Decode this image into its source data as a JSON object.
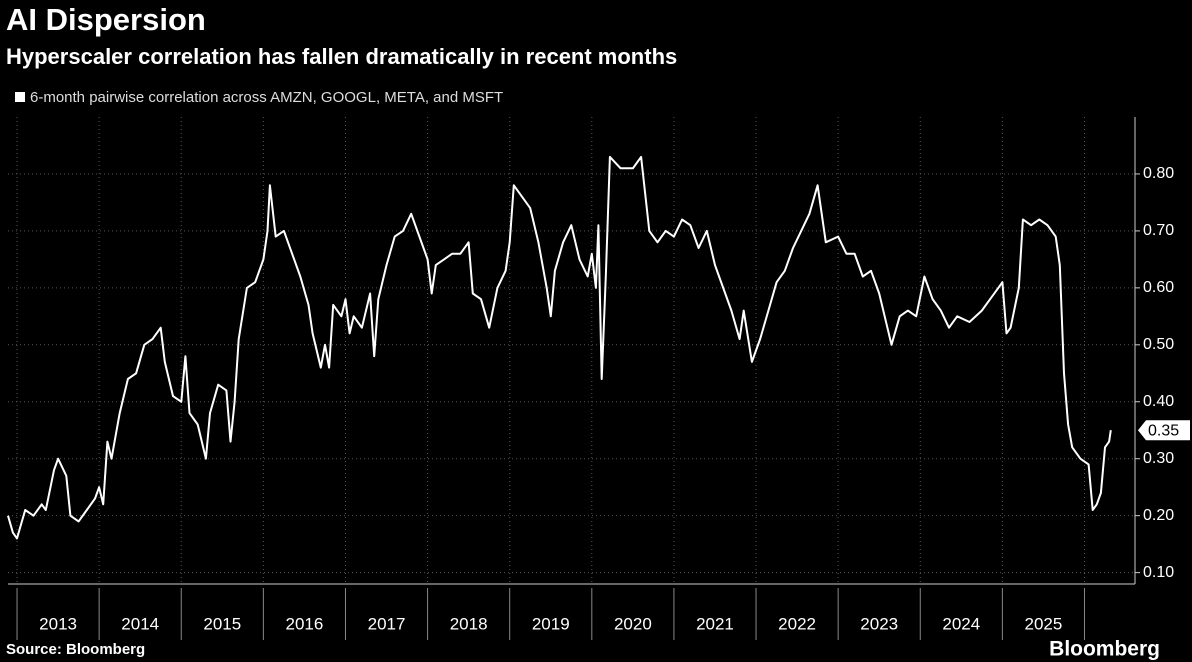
{
  "chart_data": {
    "type": "line",
    "title": "AI Dispersion",
    "subtitle": "Hyperscaler correlation has fallen dramatically in recent months",
    "source": "Source: Bloomberg",
    "brand": "Bloomberg",
    "x": [
      2012.89,
      2012.95,
      2013.0,
      2013.1,
      2013.2,
      2013.3,
      2013.35,
      2013.45,
      2013.5,
      2013.6,
      2013.65,
      2013.75,
      2013.85,
      2013.95,
      2014.0,
      2014.05,
      2014.1,
      2014.15,
      2014.25,
      2014.35,
      2014.45,
      2014.55,
      2014.65,
      2014.75,
      2014.8,
      2014.9,
      2015.0,
      2015.05,
      2015.1,
      2015.2,
      2015.3,
      2015.35,
      2015.45,
      2015.55,
      2015.6,
      2015.65,
      2015.7,
      2015.8,
      2015.9,
      2016.0,
      2016.05,
      2016.08,
      2016.15,
      2016.25,
      2016.35,
      2016.45,
      2016.55,
      2016.6,
      2016.7,
      2016.75,
      2016.8,
      2016.85,
      2016.95,
      2017.0,
      2017.05,
      2017.1,
      2017.2,
      2017.3,
      2017.35,
      2017.4,
      2017.5,
      2017.6,
      2017.7,
      2017.8,
      2017.9,
      2018.0,
      2018.05,
      2018.1,
      2018.2,
      2018.3,
      2018.4,
      2018.5,
      2018.55,
      2018.65,
      2018.75,
      2018.85,
      2018.95,
      2019.0,
      2019.05,
      2019.15,
      2019.25,
      2019.35,
      2019.45,
      2019.5,
      2019.55,
      2019.65,
      2019.75,
      2019.85,
      2019.95,
      2020.0,
      2020.05,
      2020.08,
      2020.12,
      2020.17,
      2020.22,
      2020.35,
      2020.5,
      2020.6,
      2020.7,
      2020.8,
      2020.9,
      2021.0,
      2021.1,
      2021.2,
      2021.3,
      2021.4,
      2021.5,
      2021.6,
      2021.7,
      2021.8,
      2021.85,
      2021.95,
      2022.05,
      2022.15,
      2022.25,
      2022.35,
      2022.45,
      2022.55,
      2022.65,
      2022.75,
      2022.8,
      2022.85,
      2023.0,
      2023.1,
      2023.2,
      2023.3,
      2023.4,
      2023.5,
      2023.6,
      2023.65,
      2023.75,
      2023.85,
      2023.95,
      2024.05,
      2024.15,
      2024.25,
      2024.35,
      2024.45,
      2024.6,
      2024.75,
      2024.85,
      2024.95,
      2025.0,
      2025.05,
      2025.1,
      2025.2,
      2025.25,
      2025.35,
      2025.45,
      2025.55,
      2025.65,
      2025.7,
      2025.75,
      2025.8,
      2025.85,
      2025.95,
      2026.05,
      2026.1,
      2026.15,
      2026.2,
      2026.25,
      2026.3,
      2026.32
    ],
    "series": [
      {
        "name": "6-month pairwise correlation across AMZN, GOOGL, META, and MSFT",
        "color": "#ffffff",
        "values": [
          0.2,
          0.17,
          0.16,
          0.21,
          0.2,
          0.22,
          0.21,
          0.28,
          0.3,
          0.27,
          0.2,
          0.19,
          0.21,
          0.23,
          0.25,
          0.22,
          0.33,
          0.3,
          0.38,
          0.44,
          0.45,
          0.5,
          0.51,
          0.53,
          0.47,
          0.41,
          0.4,
          0.48,
          0.38,
          0.36,
          0.3,
          0.38,
          0.43,
          0.42,
          0.33,
          0.4,
          0.51,
          0.6,
          0.61,
          0.65,
          0.7,
          0.78,
          0.69,
          0.7,
          0.66,
          0.62,
          0.57,
          0.52,
          0.46,
          0.5,
          0.46,
          0.57,
          0.55,
          0.58,
          0.52,
          0.55,
          0.53,
          0.59,
          0.48,
          0.58,
          0.64,
          0.69,
          0.7,
          0.73,
          0.69,
          0.65,
          0.59,
          0.64,
          0.65,
          0.66,
          0.66,
          0.68,
          0.59,
          0.58,
          0.53,
          0.6,
          0.63,
          0.68,
          0.78,
          0.76,
          0.74,
          0.68,
          0.6,
          0.55,
          0.63,
          0.68,
          0.71,
          0.65,
          0.62,
          0.66,
          0.6,
          0.71,
          0.44,
          0.62,
          0.83,
          0.81,
          0.81,
          0.83,
          0.7,
          0.68,
          0.7,
          0.69,
          0.72,
          0.71,
          0.67,
          0.7,
          0.64,
          0.6,
          0.56,
          0.51,
          0.56,
          0.47,
          0.51,
          0.56,
          0.61,
          0.63,
          0.67,
          0.7,
          0.73,
          0.78,
          0.73,
          0.68,
          0.69,
          0.66,
          0.66,
          0.62,
          0.63,
          0.59,
          0.53,
          0.5,
          0.55,
          0.56,
          0.55,
          0.62,
          0.58,
          0.56,
          0.53,
          0.55,
          0.54,
          0.56,
          0.58,
          0.6,
          0.61,
          0.52,
          0.53,
          0.6,
          0.72,
          0.71,
          0.72,
          0.71,
          0.69,
          0.64,
          0.45,
          0.36,
          0.32,
          0.3,
          0.29,
          0.21,
          0.22,
          0.24,
          0.32,
          0.33,
          0.35
        ]
      }
    ],
    "annotations": [
      {
        "x": 2026.32,
        "value": 0.35,
        "label": "0.35"
      }
    ],
    "xlim": [
      2012.89,
      2026.53
    ],
    "xticks": [
      {
        "value": 2013.5,
        "label": "2013"
      },
      {
        "value": 2014.5,
        "label": "2014"
      },
      {
        "value": 2015.5,
        "label": "2015"
      },
      {
        "value": 2016.5,
        "label": "2016"
      },
      {
        "value": 2017.5,
        "label": "2017"
      },
      {
        "value": 2018.5,
        "label": "2018"
      },
      {
        "value": 2019.5,
        "label": "2019"
      },
      {
        "value": 2020.5,
        "label": "2020"
      },
      {
        "value": 2021.5,
        "label": "2021"
      },
      {
        "value": 2022.5,
        "label": "2022"
      },
      {
        "value": 2023.5,
        "label": "2023"
      },
      {
        "value": 2024.5,
        "label": "2024"
      },
      {
        "value": 2025.5,
        "label": "2025"
      }
    ],
    "xgrid": [
      2013,
      2014,
      2015,
      2016,
      2017,
      2018,
      2019,
      2020,
      2021,
      2022,
      2023,
      2024,
      2025,
      2026
    ],
    "ylim": [
      0.08,
      0.9
    ],
    "yticks": [
      {
        "value": 0.1,
        "label": "0.10"
      },
      {
        "value": 0.2,
        "label": "0.20"
      },
      {
        "value": 0.3,
        "label": "0.30"
      },
      {
        "value": 0.4,
        "label": "0.40"
      },
      {
        "value": 0.5,
        "label": "0.50"
      },
      {
        "value": 0.6,
        "label": "0.60"
      },
      {
        "value": 0.7,
        "label": "0.70"
      },
      {
        "value": 0.8,
        "label": "0.80"
      }
    ],
    "grid": true
  }
}
